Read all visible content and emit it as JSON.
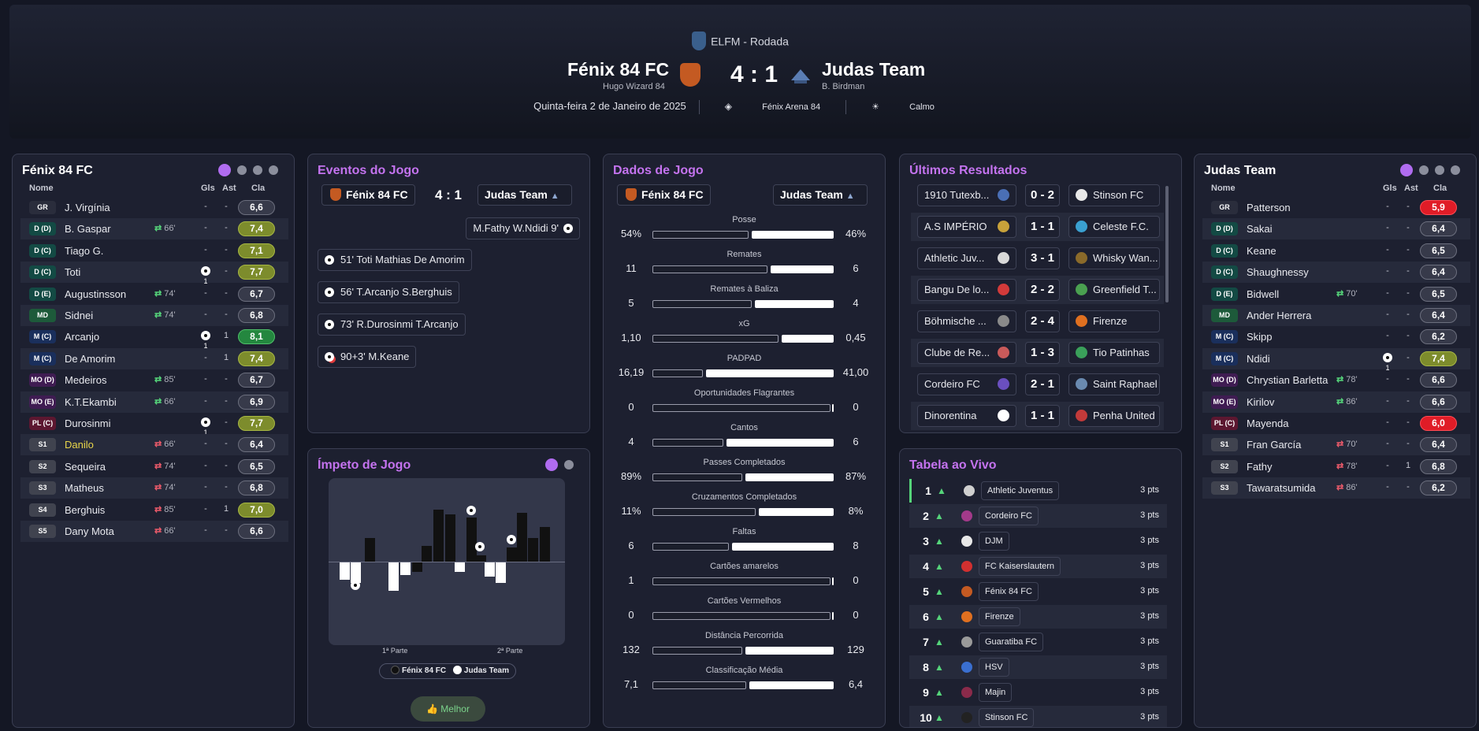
{
  "header": {
    "competition": "ELFM - Rodada",
    "home_team": "Fénix 84 FC",
    "home_coach": "Hugo Wizard 84",
    "away_team": "Judas Team",
    "away_coach": "B. Birdman",
    "score": "4 : 1",
    "date": "Quinta-feira 2 de Janeiro de 2025",
    "stadium": "Fénix Arena 84",
    "weather": "Calmo"
  },
  "columns": {
    "name": "Nome",
    "goals": "Gls",
    "assists": "Ast",
    "rating": "Cla"
  },
  "home_lineup": {
    "title": "Fénix 84 FC",
    "players": [
      {
        "pos": "GR",
        "name": "J. Virgínia",
        "sub": "",
        "gls": "-",
        "ast": "-",
        "rating": "6,6"
      },
      {
        "pos": "D (D)",
        "name": "B. Gaspar",
        "sub": "66'",
        "gls": "-",
        "ast": "-",
        "rating": "7,4"
      },
      {
        "pos": "D (C)",
        "name": "Tiago G.",
        "sub": "",
        "gls": "-",
        "ast": "-",
        "rating": "7,1"
      },
      {
        "pos": "D (C)",
        "name": "Toti",
        "sub": "",
        "gls": "1",
        "ast": "-",
        "rating": "7,7"
      },
      {
        "pos": "D (E)",
        "name": "Augustinsson",
        "sub": "74'",
        "gls": "-",
        "ast": "-",
        "rating": "6,7"
      },
      {
        "pos": "MD",
        "name": "Sidnei",
        "sub": "74'",
        "gls": "-",
        "ast": "-",
        "rating": "6,8"
      },
      {
        "pos": "M (C)",
        "name": "Arcanjo",
        "sub": "",
        "gls": "1",
        "ast": "1",
        "rating": "8,1"
      },
      {
        "pos": "M (C)",
        "name": "De Amorim",
        "sub": "",
        "gls": "-",
        "ast": "1",
        "rating": "7,4"
      },
      {
        "pos": "MO (D)",
        "name": "Medeiros",
        "sub": "85'",
        "gls": "-",
        "ast": "-",
        "rating": "6,7"
      },
      {
        "pos": "MO (E)",
        "name": "K.T.Ekambi",
        "sub": "66'",
        "gls": "-",
        "ast": "-",
        "rating": "6,9"
      },
      {
        "pos": "PL (C)",
        "name": "Durosinmi",
        "sub": "",
        "gls": "1",
        "ast": "-",
        "rating": "7,7"
      },
      {
        "pos": "S1",
        "name": "Danilo",
        "sub": "66'",
        "gls": "-",
        "ast": "-",
        "rating": "6,4"
      },
      {
        "pos": "S2",
        "name": "Sequeira",
        "sub": "74'",
        "gls": "-",
        "ast": "-",
        "rating": "6,5"
      },
      {
        "pos": "S3",
        "name": "Matheus",
        "sub": "74'",
        "gls": "-",
        "ast": "-",
        "rating": "6,8"
      },
      {
        "pos": "S4",
        "name": "Berghuis",
        "sub": "85'",
        "gls": "-",
        "ast": "1",
        "rating": "7,0"
      },
      {
        "pos": "S5",
        "name": "Dany Mota",
        "sub": "66'",
        "gls": "-",
        "ast": "-",
        "rating": "6,6"
      }
    ]
  },
  "away_lineup": {
    "title": "Judas Team",
    "players": [
      {
        "pos": "GR",
        "name": "Patterson",
        "sub": "",
        "gls": "-",
        "ast": "-",
        "rating": "5,9"
      },
      {
        "pos": "D (D)",
        "name": "Sakai",
        "sub": "",
        "gls": "-",
        "ast": "-",
        "rating": "6,4"
      },
      {
        "pos": "D (C)",
        "name": "Keane",
        "sub": "",
        "gls": "-",
        "ast": "-",
        "rating": "6,5"
      },
      {
        "pos": "D (C)",
        "name": "Shaughnessy",
        "sub": "",
        "gls": "-",
        "ast": "-",
        "rating": "6,4"
      },
      {
        "pos": "D (E)",
        "name": "Bidwell",
        "sub": "70'",
        "gls": "-",
        "ast": "-",
        "rating": "6,5"
      },
      {
        "pos": "MD",
        "name": "Ander Herrera",
        "sub": "",
        "gls": "-",
        "ast": "-",
        "rating": "6,4"
      },
      {
        "pos": "M (C)",
        "name": "Skipp",
        "sub": "",
        "gls": "-",
        "ast": "-",
        "rating": "6,2"
      },
      {
        "pos": "M (C)",
        "name": "Ndidi",
        "sub": "",
        "gls": "1",
        "ast": "-",
        "rating": "7,4"
      },
      {
        "pos": "MO (D)",
        "name": "Chrystian Barletta",
        "sub": "78'",
        "gls": "-",
        "ast": "-",
        "rating": "6,6"
      },
      {
        "pos": "MO (E)",
        "name": "Kirilov",
        "sub": "86'",
        "gls": "-",
        "ast": "-",
        "rating": "6,6"
      },
      {
        "pos": "PL (C)",
        "name": "Mayenda",
        "sub": "",
        "gls": "-",
        "ast": "-",
        "rating": "6,0"
      },
      {
        "pos": "S1",
        "name": "Fran García",
        "sub": "70'",
        "gls": "-",
        "ast": "-",
        "rating": "6,4"
      },
      {
        "pos": "S2",
        "name": "Fathy",
        "sub": "78'",
        "gls": "-",
        "ast": "1",
        "rating": "6,8"
      },
      {
        "pos": "S3",
        "name": "Tawaratsumida",
        "sub": "86'",
        "gls": "-",
        "ast": "-",
        "rating": "6,2"
      }
    ]
  },
  "events": {
    "title": "Eventos do Jogo",
    "home": "Fénix 84 FC",
    "score": "4 : 1",
    "away": "Judas Team",
    "away_events": [
      {
        "text": "M.Fathy  W.Ndidi  9'"
      }
    ],
    "home_events": [
      {
        "text": "51'  Toti  Mathias De Amorim"
      },
      {
        "text": "56'  T.Arcanjo  S.Berghuis"
      },
      {
        "text": "73'  R.Durosinmi  T.Arcanjo"
      },
      {
        "text": "90+3'  M.Keane"
      }
    ]
  },
  "momentum": {
    "title": "Ímpeto de Jogo",
    "first_half": "1ª Parte",
    "second_half": "2ª Parte",
    "legend_home": "Fénix 84 FC",
    "legend_away": "Judas Team",
    "button": "Melhor"
  },
  "stats": {
    "title": "Dados de Jogo",
    "home": "Fénix 84 FC",
    "away": "Judas Team",
    "rows": [
      {
        "label": "Posse",
        "home": "54%",
        "away": "46%",
        "hfrac": 0.54,
        "afrac": 0.46
      },
      {
        "label": "Remates",
        "home": "11",
        "away": "6",
        "hfrac": 0.647,
        "afrac": 0.353
      },
      {
        "label": "Remates à Baliza",
        "home": "5",
        "away": "4",
        "hfrac": 0.556,
        "afrac": 0.444
      },
      {
        "label": "xG",
        "home": "1,10",
        "away": "0,45",
        "hfrac": 0.71,
        "afrac": 0.29
      },
      {
        "label": "PADPAD",
        "home": "16,19",
        "away": "41,00",
        "hfrac": 0.283,
        "afrac": 0.717
      },
      {
        "label": "Oportunidades Flagrantes",
        "home": "0",
        "away": "0",
        "hfrac": 1.0,
        "afrac": 0
      },
      {
        "label": "Cantos",
        "home": "4",
        "away": "6",
        "hfrac": 0.4,
        "afrac": 0.6
      },
      {
        "label": "Passes Completados",
        "home": "89%",
        "away": "87%",
        "hfrac": 0.506,
        "afrac": 0.494
      },
      {
        "label": "Cruzamentos Completados",
        "home": "11%",
        "away": "8%",
        "hfrac": 0.579,
        "afrac": 0.421
      },
      {
        "label": "Faltas",
        "home": "6",
        "away": "8",
        "hfrac": 0.429,
        "afrac": 0.571
      },
      {
        "label": "Cartões amarelos",
        "home": "1",
        "away": "0",
        "hfrac": 1.0,
        "afrac": 0
      },
      {
        "label": "Cartões Vermelhos",
        "home": "0",
        "away": "0",
        "hfrac": 1.0,
        "afrac": 0
      },
      {
        "label": "Distância Percorrida",
        "home": "132",
        "away": "129",
        "hfrac": 0.506,
        "afrac": 0.494
      },
      {
        "label": "Classificação Média",
        "home": "7,1",
        "away": "6,4",
        "hfrac": 0.526,
        "afrac": 0.474
      }
    ]
  },
  "results": {
    "title": "Últimos Resultados",
    "rows": [
      {
        "home": "1910 Tutexb...",
        "score": "0 - 2",
        "away": "Stinson FC"
      },
      {
        "home": "A.S IMPÉRIO",
        "score": "1 - 1",
        "away": "Celeste F.C."
      },
      {
        "home": "Athletic Juv...",
        "score": "3 - 1",
        "away": "Whisky Wan..."
      },
      {
        "home": "Bangu De lo...",
        "score": "2 - 2",
        "away": "Greenfield T..."
      },
      {
        "home": "Böhmische ...",
        "score": "2 - 4",
        "away": "Firenze"
      },
      {
        "home": "Clube de Re...",
        "score": "1 - 3",
        "away": "Tio Patinhas"
      },
      {
        "home": "Cordeiro FC",
        "score": "2 - 1",
        "away": "Saint Raphael"
      },
      {
        "home": "Dinorentina",
        "score": "1 - 1",
        "away": "Penha United"
      }
    ]
  },
  "league": {
    "title": "Tabela ao Vivo",
    "rows": [
      {
        "pos": "1",
        "team": "Athletic Juventus",
        "pts": "3 pts"
      },
      {
        "pos": "2",
        "team": "Cordeiro FC",
        "pts": "3 pts"
      },
      {
        "pos": "3",
        "team": "DJM",
        "pts": "3 pts"
      },
      {
        "pos": "4",
        "team": "FC Kaiserslautern",
        "pts": "3 pts"
      },
      {
        "pos": "5",
        "team": "Fénix 84 FC",
        "pts": "3 pts"
      },
      {
        "pos": "6",
        "team": "Firenze",
        "pts": "3 pts"
      },
      {
        "pos": "7",
        "team": "Guaratiba FC",
        "pts": "3 pts"
      },
      {
        "pos": "8",
        "team": "HSV",
        "pts": "3 pts"
      },
      {
        "pos": "9",
        "team": "Majin",
        "pts": "3 pts"
      },
      {
        "pos": "10",
        "team": "Stinson FC",
        "pts": "3 pts"
      }
    ]
  },
  "colors": {
    "accent": "#c473ef",
    "good_rating": "#7d8c2c",
    "great_rating": "#24873f",
    "bad_rating": "#e01c27",
    "sub_in": "#55d47a",
    "sub_out": "#ea5a6a"
  }
}
